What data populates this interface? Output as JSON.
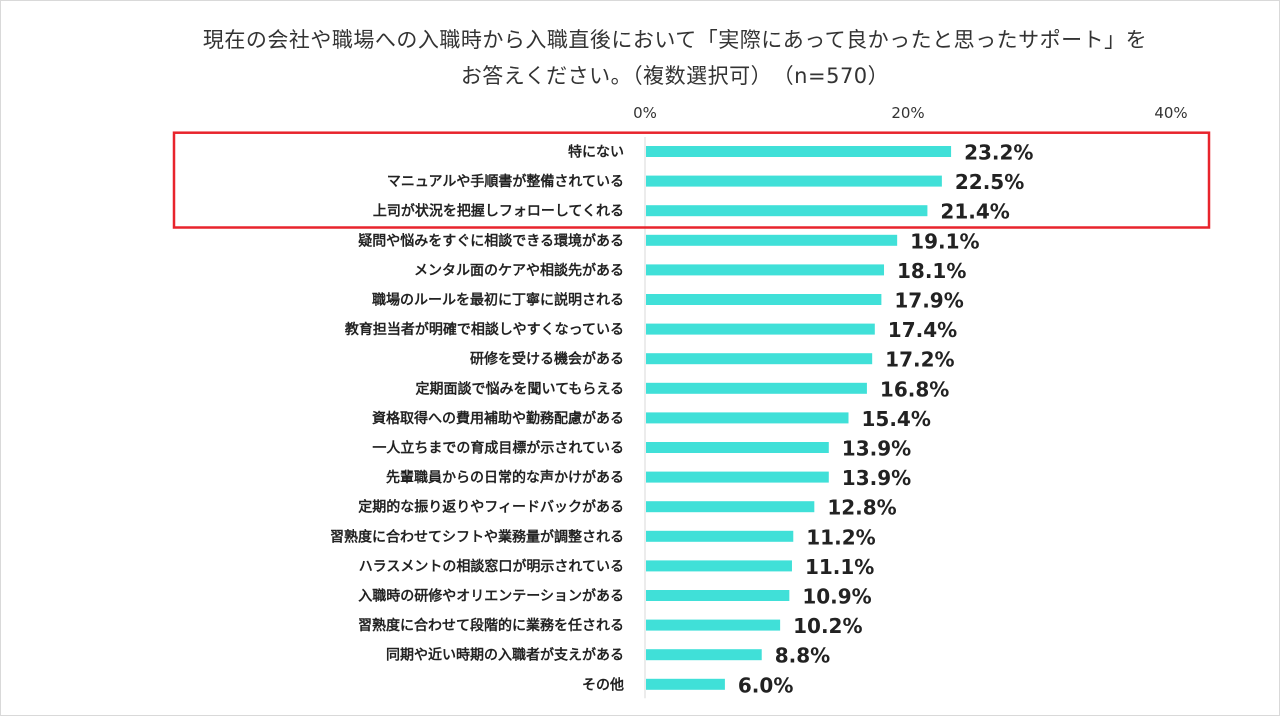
{
  "chart_data": {
    "type": "bar",
    "orientation": "horizontal",
    "title_line1": "現在の会社や職場への入職時から入職直後において「実際にあって良かったと思ったサポート」を",
    "title_line2": "お答えください。（複数選択可）　（n=570）",
    "x_ticks": [
      "0%",
      "20%",
      "40%"
    ],
    "xlim": [
      0,
      40
    ],
    "categories": [
      "特にない",
      "マニュアルや手順書が整備されている",
      "上司が状況を把握しフォローしてくれる",
      "疑問や悩みをすぐに相談できる環境がある",
      "メンタル面のケアや相談先がある",
      "職場のルールを最初に丁寧に説明される",
      "教育担当者が明確で相談しやすくなっている",
      "研修を受ける機会がある",
      "定期面談で悩みを聞いてもらえる",
      "資格取得への費用補助や勤務配慮がある",
      "一人立ちまでの育成目標が示されている",
      "先輩職員からの日常的な声かけがある",
      "定期的な振り返りやフィードバックがある",
      "習熟度に合わせてシフトや業務量が調整される",
      "ハラスメントの相談窓口が明示されている",
      "入職時の研修やオリエンテーションがある",
      "習熟度に合わせて段階的に業務を任される",
      "同期や近い時期の入職者が支えがある",
      "その他"
    ],
    "values": [
      23.2,
      22.5,
      21.4,
      19.1,
      18.1,
      17.9,
      17.4,
      17.2,
      16.8,
      15.4,
      13.9,
      13.9,
      12.8,
      11.2,
      11.1,
      10.9,
      10.2,
      8.8,
      6.0
    ],
    "labels": [
      "23.2%",
      "22.5%",
      "21.4%",
      "19.1%",
      "18.1%",
      "17.9%",
      "17.4%",
      "17.2%",
      "16.8%",
      "15.4%",
      "13.9%",
      "13.9%",
      "12.8%",
      "11.2%",
      "11.1%",
      "10.9%",
      "10.2%",
      "8.8%",
      "6.0%"
    ],
    "highlighted_count": 3
  },
  "colors": {
    "bar": "#40e0d8",
    "highlight_border": "#e8242c",
    "axis": "#d9d9d9"
  }
}
